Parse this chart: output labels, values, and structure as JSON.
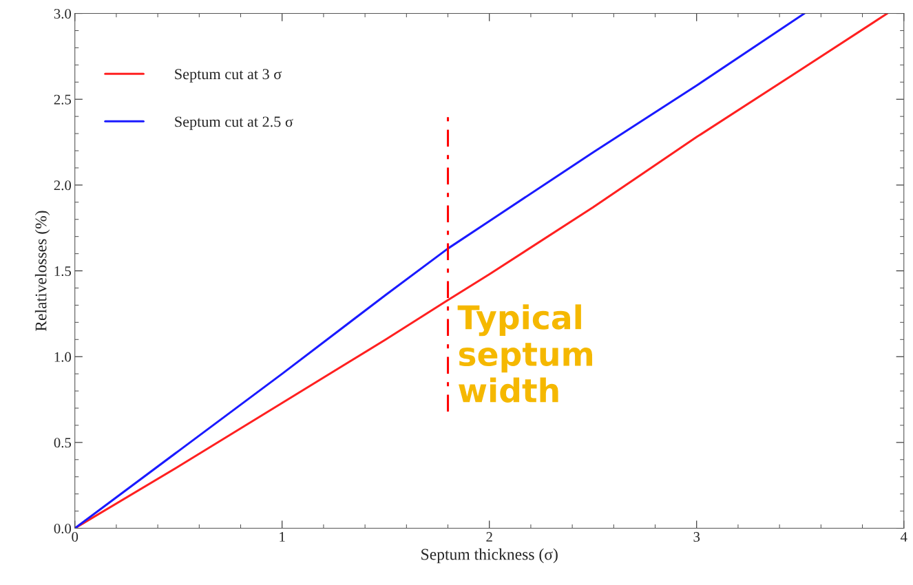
{
  "chart_data": {
    "type": "line",
    "xlabel": "Septum thickness (σ)",
    "ylabel": "Relativelosses (%)",
    "xlim": [
      0,
      4
    ],
    "ylim": [
      0,
      3.0
    ],
    "xticks": [
      0,
      1,
      2,
      3,
      4
    ],
    "yticks": [
      {
        "value": 0,
        "label": "0.0"
      },
      {
        "value": 0.5,
        "label": "0.5"
      },
      {
        "value": 1,
        "label": "1.0"
      },
      {
        "value": 1.5,
        "label": "1.5"
      },
      {
        "value": 2,
        "label": "2.0"
      },
      {
        "value": 2.5,
        "label": "2.5"
      },
      {
        "value": 3,
        "label": "3.0"
      }
    ],
    "grid": false,
    "legend": "top left",
    "series": [
      {
        "name": "Septum cut at 3 σ",
        "color": "#ff2020",
        "x": [
          0,
          0.5,
          1,
          1.5,
          1.8,
          2,
          2.5,
          3,
          3.5,
          3.92
        ],
        "values": [
          0,
          0.36,
          0.73,
          1.1,
          1.33,
          1.48,
          1.87,
          2.28,
          2.67,
          3.0
        ]
      },
      {
        "name": "Septum cut at 2.5 σ",
        "color": "#1a1aff",
        "x": [
          0,
          0.5,
          1,
          1.5,
          1.8,
          2,
          2.5,
          3,
          3.52
        ],
        "values": [
          0,
          0.45,
          0.9,
          1.36,
          1.63,
          1.79,
          2.19,
          2.58,
          3.0
        ]
      },
      {
        "color": "#ff0000",
        "line_style": "dashdot",
        "x": [
          1.8,
          1.8
        ],
        "values": [
          0.68,
          2.4
        ]
      }
    ],
    "annotations": [
      {
        "text": "Typical\nseptum\nwidth",
        "x": 1.8,
        "y": 1.0
      }
    ]
  }
}
